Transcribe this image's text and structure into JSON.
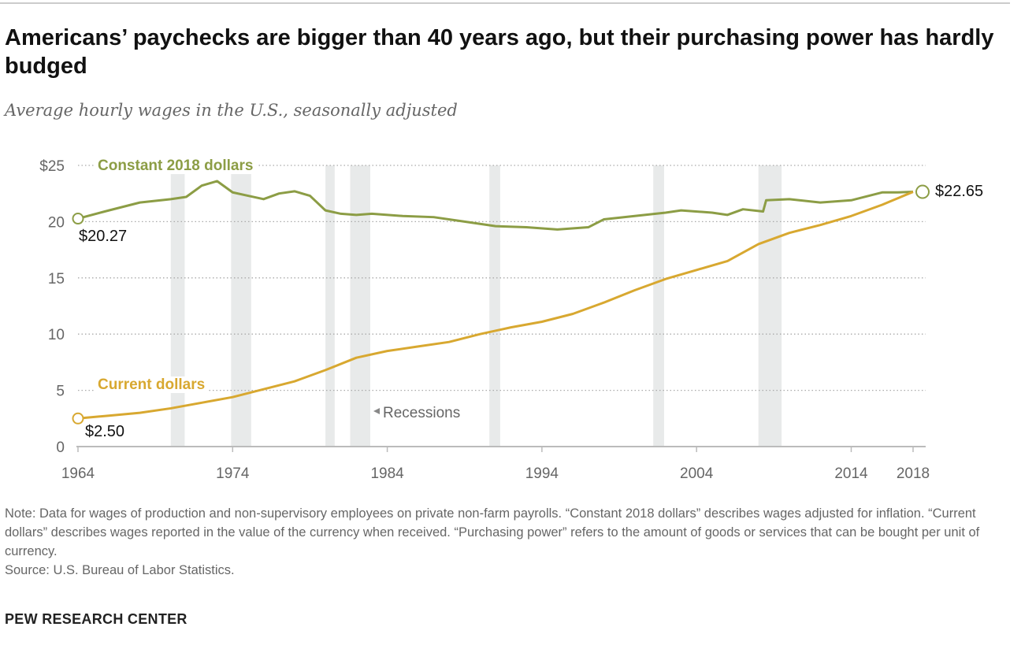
{
  "title": "Americans’ paychecks are bigger than 40 years ago, but their purchasing power has hardly budged",
  "subtitle": "Average hourly wages in the U.S., seasonally adjusted",
  "chart_data": {
    "type": "line",
    "title": "Americans’ paychecks are bigger than 40 years ago, but their purchasing power has hardly budged",
    "xlabel": "",
    "ylabel": "",
    "xlim": [
      1964,
      2018
    ],
    "ylim": [
      0,
      25
    ],
    "x_ticks": [
      1964,
      1974,
      1984,
      1994,
      2004,
      2014,
      2018
    ],
    "x_tick_labels": [
      "1964",
      "1974",
      "1984",
      "1994",
      "2004",
      "2014",
      "2018"
    ],
    "y_ticks": [
      0,
      5,
      10,
      15,
      20,
      25
    ],
    "y_tick_labels": [
      "0",
      "5",
      "10",
      "15",
      "20",
      "$25"
    ],
    "grid": true,
    "recessions_label": "Recessions",
    "recessions": [
      [
        1970.0,
        1970.9
      ],
      [
        1973.9,
        1975.2
      ],
      [
        1980.0,
        1980.6
      ],
      [
        1981.6,
        1982.9
      ],
      [
        1990.6,
        1991.3
      ],
      [
        2001.2,
        2001.9
      ],
      [
        2008.0,
        2009.5
      ]
    ],
    "series": [
      {
        "name": "Constant 2018 dollars",
        "color": "#8c9d45",
        "start_label": "$20.27",
        "end_label": "$22.65",
        "x": [
          1964,
          1966,
          1968,
          1970,
          1971,
          1972,
          1973,
          1974,
          1975,
          1976,
          1977,
          1978,
          1979,
          1980,
          1981,
          1982,
          1983,
          1985,
          1987,
          1989,
          1991,
          1993,
          1995,
          1997,
          1998,
          2000,
          2002,
          2003,
          2005,
          2006,
          2007,
          2008.3,
          2008.5,
          2010,
          2012,
          2014,
          2016,
          2017,
          2018
        ],
        "values": [
          20.27,
          21.0,
          21.7,
          22.0,
          22.2,
          23.2,
          23.6,
          22.6,
          22.3,
          22.0,
          22.5,
          22.7,
          22.3,
          21.0,
          20.7,
          20.6,
          20.7,
          20.5,
          20.4,
          20.0,
          19.6,
          19.5,
          19.3,
          19.5,
          20.2,
          20.5,
          20.8,
          21.0,
          20.8,
          20.6,
          21.1,
          20.9,
          21.9,
          22.0,
          21.7,
          21.9,
          22.6,
          22.6,
          22.65
        ]
      },
      {
        "name": "Current dollars",
        "color": "#d8a830",
        "start_label": "$2.50",
        "end_label": "$22.65",
        "x": [
          1964,
          1966,
          1968,
          1970,
          1972,
          1974,
          1976,
          1978,
          1980,
          1982,
          1984,
          1986,
          1988,
          1990,
          1992,
          1994,
          1996,
          1998,
          2000,
          2002,
          2004,
          2006,
          2008,
          2010,
          2012,
          2014,
          2016,
          2018
        ],
        "values": [
          2.5,
          2.75,
          3.0,
          3.4,
          3.9,
          4.4,
          5.1,
          5.8,
          6.8,
          7.9,
          8.5,
          8.9,
          9.3,
          10.0,
          10.6,
          11.1,
          11.8,
          12.8,
          13.9,
          14.9,
          15.7,
          16.5,
          18.0,
          19.0,
          19.7,
          20.5,
          21.5,
          22.65
        ]
      }
    ]
  },
  "note": "Note: Data for wages of production and non-supervisory employees on private non-farm payrolls. “Constant 2018 dollars” describes wages adjusted for inflation. “Current dollars” describes wages reported in the value of the currency when received. “Purchasing power” refers to the amount of goods or services that can be bought per unit of currency.",
  "source": "Source: U.S. Bureau of Labor Statistics.",
  "brand": "PEW RESEARCH CENTER"
}
